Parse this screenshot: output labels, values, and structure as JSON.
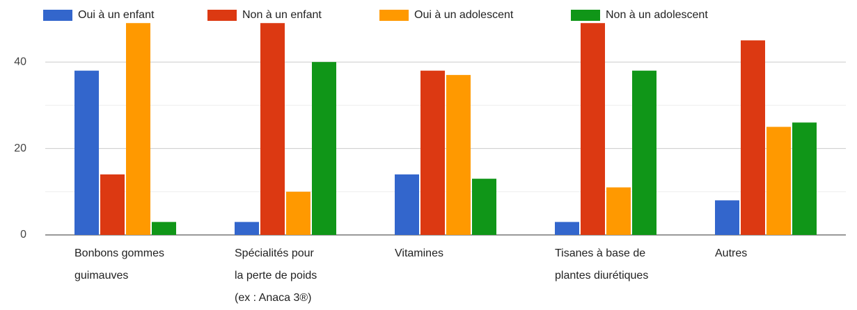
{
  "chart_data": {
    "type": "bar",
    "categories": [
      "Bonbons gommes\nguimauves",
      "Spécialités pour\nla perte de poids\n(ex : Anaca 3®)",
      "Vitamines",
      "Tisanes à base de\nplantes diurétiques",
      "Autres"
    ],
    "series": [
      {
        "name": "Oui à un enfant",
        "color": "#3366cc",
        "values": [
          38,
          3,
          14,
          3,
          8
        ]
      },
      {
        "name": "Non à un enfant",
        "color": "#dc3912",
        "values": [
          14,
          49,
          38,
          49,
          45
        ]
      },
      {
        "name": "Oui à un adolescent",
        "color": "#ff9900",
        "values": [
          49,
          10,
          37,
          11,
          25
        ]
      },
      {
        "name": "Non à un adolescent",
        "color": "#109618",
        "values": [
          3,
          40,
          13,
          38,
          26
        ]
      }
    ],
    "ylim": [
      0,
      50
    ],
    "yticks": [
      0,
      20,
      40
    ],
    "minor_yticks": [
      10,
      30
    ],
    "grid": true,
    "legend": "top"
  }
}
